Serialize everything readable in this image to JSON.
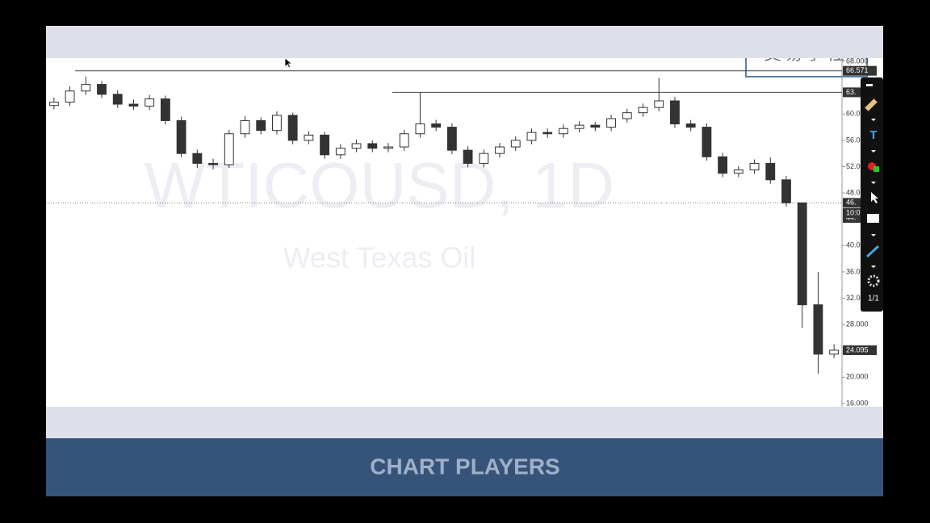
{
  "chart_data": {
    "type": "candlestick",
    "title": "WTICOUSD, 1D",
    "subtitle": "West Texas Oil",
    "logo": "交易学社",
    "footer": "CHART PLAYERS",
    "toolbar_page": "1/1",
    "time_label": "10:0",
    "ylim": [
      15.5,
      68.5
    ],
    "yticks": [
      {
        "value": 68,
        "label": "68.000"
      },
      {
        "value": 60,
        "label": "60.000"
      },
      {
        "value": 56,
        "label": "56.000"
      },
      {
        "value": 52,
        "label": "52.000"
      },
      {
        "value": 48,
        "label": "48.000"
      },
      {
        "value": 40,
        "label": "40.000"
      },
      {
        "value": 36,
        "label": "36.000"
      },
      {
        "value": 32,
        "label": "32.000"
      },
      {
        "value": 28,
        "label": "28.000"
      },
      {
        "value": 20,
        "label": "20.000"
      },
      {
        "value": 16,
        "label": "16.000"
      }
    ],
    "levels": [
      {
        "value": 66.571,
        "label": "66.571"
      },
      {
        "value": 63.3,
        "label": "63."
      },
      {
        "value": 46.5,
        "label": "46."
      },
      {
        "value": 44.2,
        "label": "44."
      },
      {
        "value": 24.095,
        "label": "24.095"
      }
    ],
    "up_color": "#ffffff",
    "down_color": "#333333",
    "outline_color": "#333333",
    "open": [
      61.3,
      61.8,
      63.5,
      64.5,
      63.0,
      61.5,
      61.2,
      62.3,
      59.0,
      54.0,
      52.5,
      52.3,
      57.0,
      59.0,
      57.5,
      59.8,
      56.0,
      56.8,
      53.8,
      54.8,
      55.5,
      54.8,
      55.0,
      57.0,
      58.5,
      58.0,
      54.5,
      52.5,
      54.0,
      55.0,
      56.0,
      57.2,
      57.0,
      57.8,
      58.3,
      58.0,
      59.3,
      60.2,
      61.0,
      62.0,
      58.5,
      58.0,
      53.5,
      51.0,
      51.5,
      52.5,
      50.0,
      46.5,
      31.0,
      23.5
    ],
    "high": [
      62.5,
      64.2,
      65.7,
      65.0,
      63.6,
      62.2,
      62.9,
      62.8,
      59.6,
      54.6,
      53.2,
      57.6,
      59.7,
      59.5,
      60.4,
      60.2,
      57.4,
      57.3,
      55.4,
      56.1,
      56.0,
      55.6,
      57.6,
      63.3,
      59.1,
      58.6,
      55.1,
      54.6,
      55.6,
      56.6,
      57.8,
      57.8,
      58.4,
      58.9,
      58.8,
      59.9,
      60.8,
      61.6,
      65.5,
      62.6,
      59.1,
      58.6,
      54.1,
      52.1,
      53.1,
      53.4,
      50.6,
      46.5,
      36.0,
      25.0
    ],
    "low": [
      60.7,
      61.2,
      62.9,
      62.4,
      60.9,
      60.6,
      60.6,
      58.4,
      53.4,
      51.8,
      51.6,
      51.8,
      56.4,
      56.9,
      56.9,
      55.4,
      55.4,
      53.2,
      53.2,
      54.2,
      54.2,
      54.2,
      54.4,
      56.4,
      57.4,
      53.9,
      51.9,
      51.9,
      53.4,
      54.4,
      55.4,
      56.4,
      56.4,
      57.2,
      57.4,
      57.4,
      58.7,
      59.6,
      60.4,
      57.9,
      57.4,
      52.9,
      50.4,
      50.4,
      50.9,
      49.4,
      45.9,
      27.5,
      20.5,
      22.9
    ],
    "close": [
      61.8,
      63.5,
      64.5,
      63.0,
      61.5,
      61.2,
      62.3,
      59.0,
      54.0,
      52.5,
      52.3,
      57.0,
      59.0,
      57.5,
      59.8,
      56.0,
      56.8,
      53.8,
      54.8,
      55.5,
      54.8,
      55.0,
      57.0,
      58.5,
      58.0,
      54.5,
      52.5,
      54.0,
      55.0,
      56.0,
      57.2,
      57.0,
      57.8,
      58.3,
      58.0,
      59.3,
      60.2,
      61.0,
      62.0,
      58.5,
      58.0,
      53.5,
      51.0,
      51.5,
      52.5,
      50.0,
      46.5,
      31.0,
      23.5,
      24.095
    ]
  }
}
